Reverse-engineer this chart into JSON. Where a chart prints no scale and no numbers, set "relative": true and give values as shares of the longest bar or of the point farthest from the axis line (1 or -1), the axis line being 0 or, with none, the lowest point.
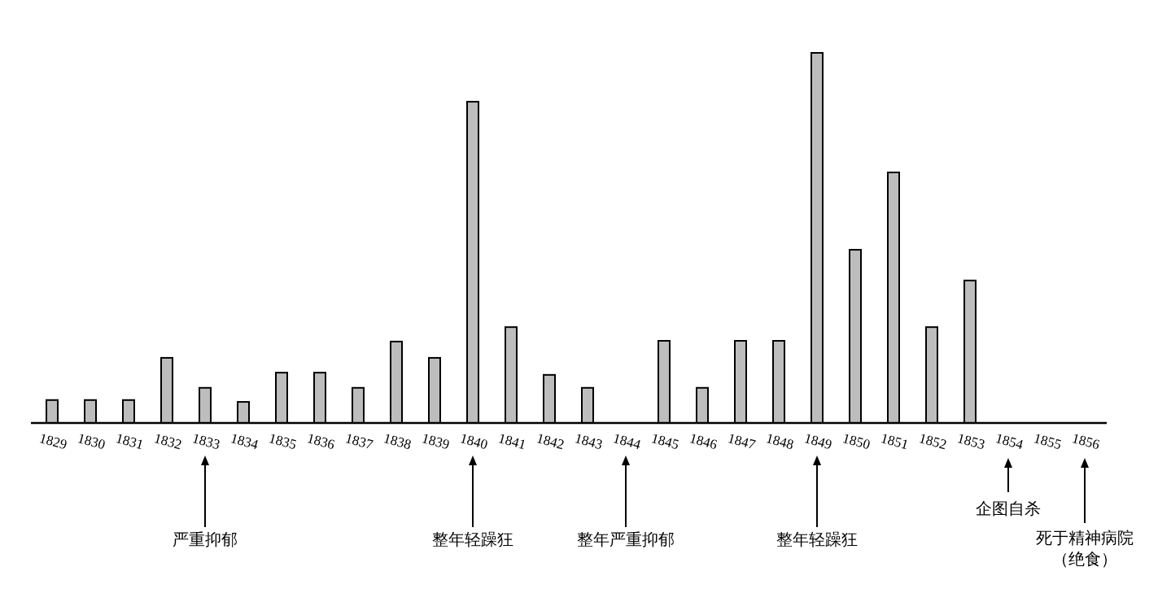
{
  "chart_data": {
    "type": "bar",
    "relative": true,
    "color": "#bdbdbd",
    "categories": [
      "1829",
      "1830",
      "1831",
      "1832",
      "1833",
      "1834",
      "1835",
      "1836",
      "1837",
      "1838",
      "1839",
      "1840",
      "1841",
      "1842",
      "1843",
      "1844",
      "1845",
      "1846",
      "1847",
      "1848",
      "1849",
      "1850",
      "1851",
      "1852",
      "1853",
      "1854",
      "1855",
      "1856"
    ],
    "values": [
      0.062,
      0.062,
      0.062,
      0.176,
      0.095,
      0.057,
      0.136,
      0.136,
      0.095,
      0.22,
      0.176,
      0.868,
      0.259,
      0.13,
      0.095,
      null,
      0.222,
      0.095,
      0.222,
      0.222,
      1,
      0.468,
      0.677,
      0.259,
      0.385,
      null,
      null,
      null
    ],
    "annotations": [
      {
        "text": "严重抑郁",
        "x": "1833"
      },
      {
        "text": "整年轻躁狂",
        "x": "1840"
      },
      "整年严重抑郁",
      {
        "text": "整年轻躁狂",
        "x": "1849"
      },
      "企图自杀",
      "死于精神病院（绝食）"
    ]
  }
}
